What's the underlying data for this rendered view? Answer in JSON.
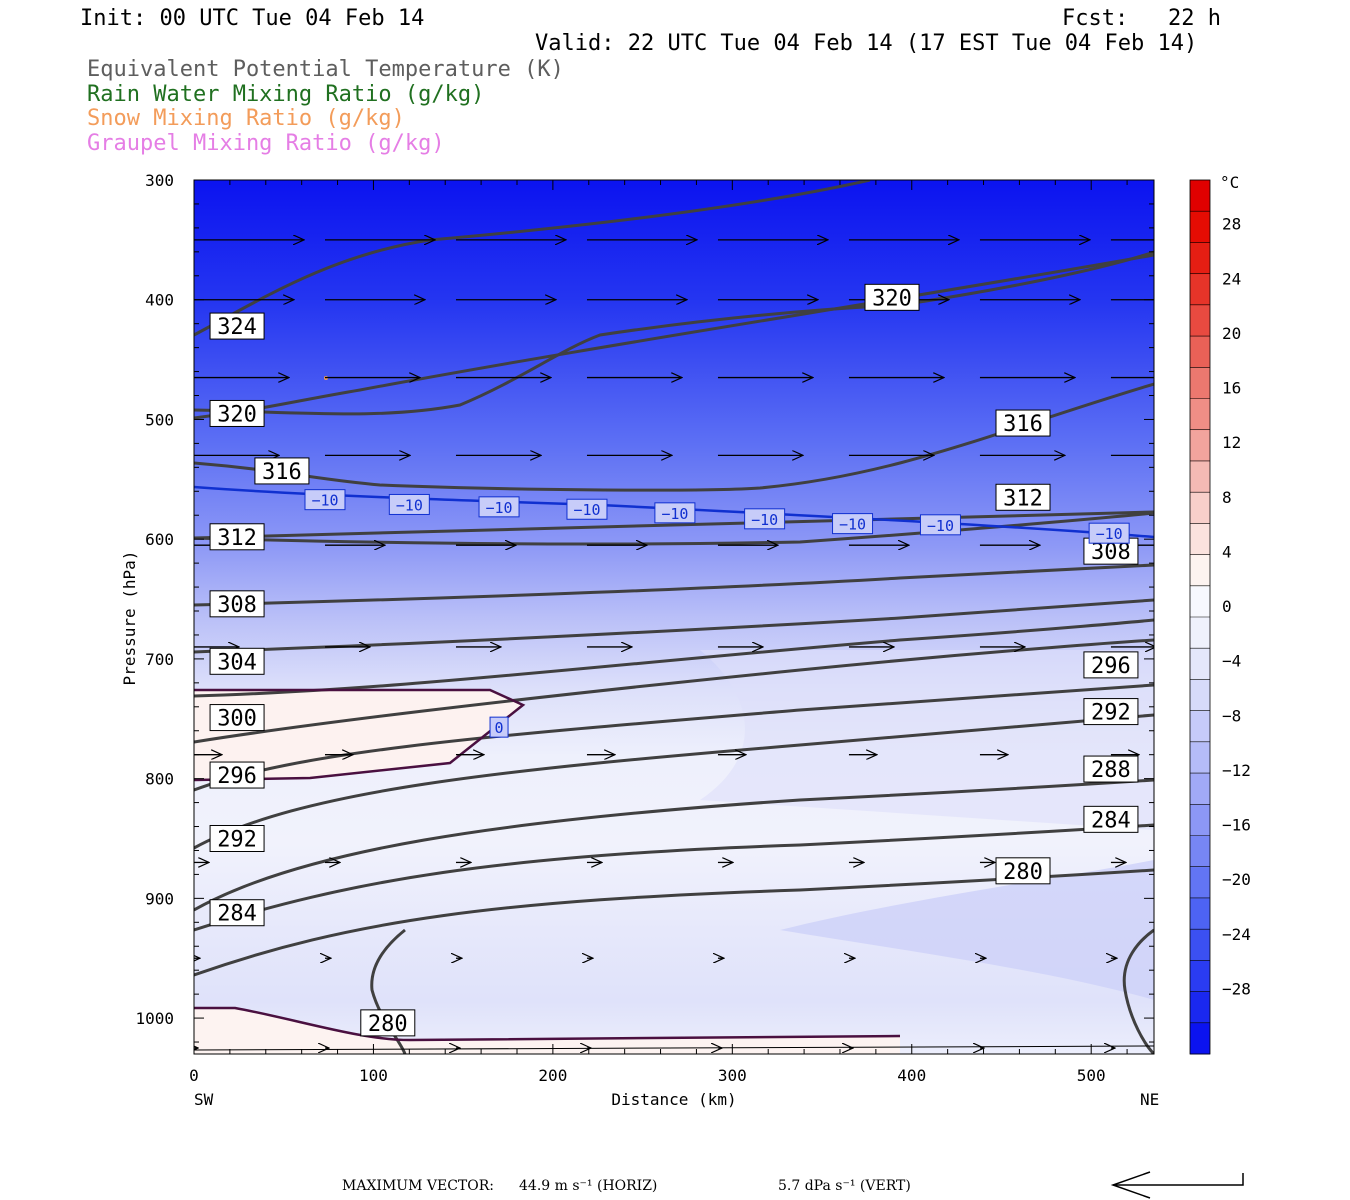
{
  "header": {
    "init": "Init: 00 UTC Tue 04 Feb 14",
    "fcst": "Fcst:   22 h",
    "valid": "Valid: 22 UTC Tue 04 Feb 14 (17 EST Tue 04 Feb 14)",
    "legend": [
      {
        "text": "Equivalent Potential Temperature (K)",
        "color": "#5e5e5e"
      },
      {
        "text": "Rain Water Mixing Ratio (g/kg)",
        "color": "#207020"
      },
      {
        "text": "Snow Mixing Ratio (g/kg)",
        "color": "#f39c5a"
      },
      {
        "text": "Graupel Mixing Ratio (g/kg)",
        "color": "#e57ee5"
      }
    ]
  },
  "chart_data": {
    "type": "cross-section",
    "xlabel": "Distance (km)",
    "ylabel": "Pressure (hPa)",
    "x_ticks": [
      0,
      100,
      200,
      300,
      400,
      500
    ],
    "xlim": [
      0,
      535
    ],
    "y_ticks": [
      300,
      400,
      500,
      600,
      700,
      800,
      900,
      1000
    ],
    "ylim": [
      300,
      1030
    ],
    "left_end": "SW",
    "right_end": "NE",
    "colorbar": {
      "unit": "°C",
      "tick_labels": [
        "28",
        "24",
        "20",
        "16",
        "12",
        "8",
        "4",
        "0",
        "−4",
        "−8",
        "−12",
        "−16",
        "−20",
        "−24",
        "−28"
      ],
      "bounds": [
        -32,
        32
      ],
      "colors": [
        "#0b13f0",
        "#1a28f0",
        "#2a3cf2",
        "#3b50f2",
        "#4d63f3",
        "#6275f4",
        "#7786f5",
        "#8c97f6",
        "#a1a9f7",
        "#b5bcf8",
        "#c6cbf9",
        "#d6daf9",
        "#e4e7fb",
        "#eff1fc",
        "#f7f8fe",
        "#fdf3f0",
        "#fbe2de",
        "#f8cfca",
        "#f5bab4",
        "#f2a49d",
        "#ef8e86",
        "#ec786f",
        "#e96157",
        "#e84a40",
        "#e63429",
        "#e51e13",
        "#e50c03",
        "#e00000"
      ]
    },
    "temperature_labels": [
      {
        "text": "−10",
        "x": 73,
        "p": 567
      },
      {
        "text": "−10",
        "x": 120,
        "p": 571
      },
      {
        "text": "−10",
        "x": 170,
        "p": 573
      },
      {
        "text": "−10",
        "x": 219,
        "p": 575
      },
      {
        "text": "−10",
        "x": 268,
        "p": 578
      },
      {
        "text": "−10",
        "x": 318,
        "p": 583
      },
      {
        "text": "−10",
        "x": 367,
        "p": 587
      },
      {
        "text": "−10",
        "x": 416,
        "p": 588
      },
      {
        "text": "−10",
        "x": 510,
        "p": 595
      },
      {
        "text": "0",
        "x": 170,
        "p": 757
      }
    ],
    "theta_e_labels": [
      {
        "text": "324",
        "x": 24,
        "p": 422
      },
      {
        "text": "320",
        "x": 24,
        "p": 495
      },
      {
        "text": "320",
        "x": 389,
        "p": 398
      },
      {
        "text": "316",
        "x": 49,
        "p": 543
      },
      {
        "text": "316",
        "x": 462,
        "p": 503
      },
      {
        "text": "312",
        "x": 24,
        "p": 598
      },
      {
        "text": "312",
        "x": 462,
        "p": 565
      },
      {
        "text": "308",
        "x": 24,
        "p": 654
      },
      {
        "text": "308",
        "x": 511,
        "p": 610
      },
      {
        "text": "304",
        "x": 24,
        "p": 702
      },
      {
        "text": "296",
        "x": 511,
        "p": 705
      },
      {
        "text": "300",
        "x": 24,
        "p": 749
      },
      {
        "text": "292",
        "x": 511,
        "p": 744
      },
      {
        "text": "296",
        "x": 24,
        "p": 797
      },
      {
        "text": "288",
        "x": 511,
        "p": 792
      },
      {
        "text": "292",
        "x": 24,
        "p": 850
      },
      {
        "text": "284",
        "x": 511,
        "p": 834
      },
      {
        "text": "284",
        "x": 24,
        "p": 912
      },
      {
        "text": "280",
        "x": 462,
        "p": 877
      },
      {
        "text": "280",
        "x": 108,
        "p": 1004
      }
    ]
  },
  "footer": {
    "max_vector_label": "MAXIMUM VECTOR:",
    "horiz": "44.9 m s⁻¹ (HORIZ)",
    "vert": "5.7 dPa s⁻¹ (VERT)"
  }
}
